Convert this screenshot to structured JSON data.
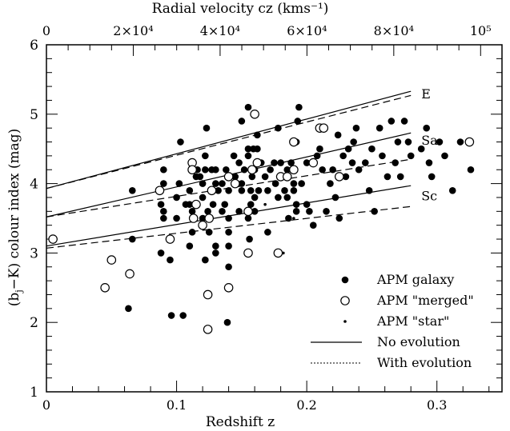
{
  "chart_data": {
    "type": "scatter",
    "title": "",
    "xlabel": "Redshift  z",
    "ylabel": "(b_j−K) colour index  (mag)",
    "top_xlabel": "Radial velocity   cz   (kms⁻¹)",
    "xlim": [
      0,
      0.35
    ],
    "ylim": [
      1,
      6
    ],
    "x_ticks": [
      {
        "value": 0,
        "label": "0"
      },
      {
        "value": 0.1,
        "label": "0.1"
      },
      {
        "value": 0.2,
        "label": "0.2"
      },
      {
        "value": 0.3,
        "label": "0.3"
      }
    ],
    "y_ticks": [
      {
        "value": 1,
        "label": "1"
      },
      {
        "value": 2,
        "label": "2"
      },
      {
        "value": 3,
        "label": "3"
      },
      {
        "value": 4,
        "label": "4"
      },
      {
        "value": 5,
        "label": "5"
      },
      {
        "value": 6,
        "label": "6"
      }
    ],
    "top_ticks": [
      {
        "value": 0,
        "label": "0"
      },
      {
        "value": 20000,
        "label": "2×10⁴"
      },
      {
        "value": 40000,
        "label": "4×10⁴"
      },
      {
        "value": 60000,
        "label": "6×10⁴"
      },
      {
        "value": 80000,
        "label": "8×10⁴"
      },
      {
        "value": 100000,
        "label": "10⁵"
      }
    ],
    "grid": false,
    "legend_position": "bottom-right",
    "legend": [
      {
        "marker": "filled-circle",
        "label": "APM galaxy"
      },
      {
        "marker": "open-circle",
        "label": "APM \"merged\""
      },
      {
        "marker": "small-dot",
        "label": "APM \"star\""
      },
      {
        "marker": "solid-line",
        "label": "No evolution"
      },
      {
        "marker": "dotted-line",
        "label": "With evolution"
      }
    ],
    "model_lines": [
      {
        "name": "E",
        "evolution": false,
        "x": [
          0,
          0.28
        ],
        "y": [
          3.93,
          5.33
        ]
      },
      {
        "name": "E",
        "evolution": true,
        "x": [
          0,
          0.28
        ],
        "y": [
          3.93,
          5.27
        ]
      },
      {
        "name": "Sa",
        "evolution": false,
        "x": [
          0,
          0.28
        ],
        "y": [
          3.52,
          4.73
        ]
      },
      {
        "name": "Sa",
        "evolution": true,
        "x": [
          0,
          0.28
        ],
        "y": [
          3.52,
          4.35
        ]
      },
      {
        "name": "Sc",
        "evolution": false,
        "x": [
          0,
          0.28
        ],
        "y": [
          3.1,
          3.97
        ]
      },
      {
        "name": "Sc",
        "evolution": true,
        "x": [
          0,
          0.28
        ],
        "y": [
          3.07,
          3.67
        ]
      }
    ],
    "line_labels": [
      "E",
      "Sa",
      "Sc"
    ],
    "series": [
      {
        "name": "APM galaxy",
        "points": [
          [
            0.066,
            3.9
          ],
          [
            0.066,
            3.2
          ],
          [
            0.088,
            3.7
          ],
          [
            0.09,
            3.6
          ],
          [
            0.09,
            4.0
          ],
          [
            0.09,
            4.2
          ],
          [
            0.09,
            3.5
          ],
          [
            0.088,
            3.0
          ],
          [
            0.095,
            2.9
          ],
          [
            0.1,
            3.8
          ],
          [
            0.1,
            3.5
          ],
          [
            0.102,
            4.0
          ],
          [
            0.103,
            4.6
          ],
          [
            0.107,
            3.7
          ],
          [
            0.11,
            3.7
          ],
          [
            0.11,
            3.9
          ],
          [
            0.11,
            3.1
          ],
          [
            0.112,
            3.6
          ],
          [
            0.115,
            4.1
          ],
          [
            0.116,
            4.2
          ],
          [
            0.118,
            4.1
          ],
          [
            0.12,
            3.5
          ],
          [
            0.12,
            3.8
          ],
          [
            0.12,
            4.0
          ],
          [
            0.122,
            4.2
          ],
          [
            0.122,
            4.4
          ],
          [
            0.123,
            4.8
          ],
          [
            0.124,
            3.6
          ],
          [
            0.125,
            3.3
          ],
          [
            0.127,
            4.2
          ],
          [
            0.128,
            3.7
          ],
          [
            0.128,
            3.9
          ],
          [
            0.13,
            4.0
          ],
          [
            0.13,
            4.2
          ],
          [
            0.132,
            3.9
          ],
          [
            0.135,
            4.0
          ],
          [
            0.135,
            3.6
          ],
          [
            0.137,
            3.7
          ],
          [
            0.138,
            4.2
          ],
          [
            0.14,
            3.9
          ],
          [
            0.14,
            3.5
          ],
          [
            0.14,
            3.3
          ],
          [
            0.14,
            3.1
          ],
          [
            0.14,
            2.8
          ],
          [
            0.144,
            4.4
          ],
          [
            0.145,
            4.1
          ],
          [
            0.148,
            4.3
          ],
          [
            0.148,
            3.6
          ],
          [
            0.15,
            3.9
          ],
          [
            0.15,
            4.0
          ],
          [
            0.152,
            4.2
          ],
          [
            0.155,
            4.5
          ],
          [
            0.155,
            4.4
          ],
          [
            0.155,
            3.5
          ],
          [
            0.156,
            3.2
          ],
          [
            0.157,
            3.7
          ],
          [
            0.157,
            3.9
          ],
          [
            0.158,
            4.1
          ],
          [
            0.159,
            4.5
          ],
          [
            0.16,
            3.6
          ],
          [
            0.16,
            3.8
          ],
          [
            0.16,
            4.2
          ],
          [
            0.16,
            5.0
          ],
          [
            0.162,
            4.7
          ],
          [
            0.162,
            4.5
          ],
          [
            0.163,
            3.9
          ],
          [
            0.165,
            4.3
          ],
          [
            0.168,
            4.1
          ],
          [
            0.17,
            3.3
          ],
          [
            0.172,
            4.2
          ],
          [
            0.175,
            4.3
          ],
          [
            0.176,
            4.0
          ],
          [
            0.178,
            3.8
          ],
          [
            0.18,
            4.3
          ],
          [
            0.182,
            4.1
          ],
          [
            0.183,
            3.9
          ],
          [
            0.185,
            4.2
          ],
          [
            0.186,
            3.5
          ],
          [
            0.188,
            4.3
          ],
          [
            0.19,
            4.0
          ],
          [
            0.19,
            3.9
          ],
          [
            0.192,
            4.6
          ],
          [
            0.192,
            3.7
          ],
          [
            0.193,
            4.9
          ],
          [
            0.194,
            5.1
          ],
          [
            0.196,
            4.0
          ],
          [
            0.2,
            4.3
          ],
          [
            0.2,
            3.7
          ],
          [
            0.202,
            3.6
          ],
          [
            0.205,
            3.4
          ],
          [
            0.208,
            4.4
          ],
          [
            0.21,
            4.5
          ],
          [
            0.212,
            4.2
          ],
          [
            0.215,
            3.6
          ],
          [
            0.218,
            4.0
          ],
          [
            0.22,
            4.2
          ],
          [
            0.222,
            3.8
          ],
          [
            0.224,
            4.7
          ],
          [
            0.225,
            3.5
          ],
          [
            0.228,
            4.4
          ],
          [
            0.23,
            4.1
          ],
          [
            0.232,
            4.5
          ],
          [
            0.235,
            4.3
          ],
          [
            0.236,
            4.6
          ],
          [
            0.238,
            4.8
          ],
          [
            0.24,
            4.2
          ],
          [
            0.245,
            4.3
          ],
          [
            0.248,
            3.9
          ],
          [
            0.25,
            4.5
          ],
          [
            0.252,
            3.6
          ],
          [
            0.256,
            4.8
          ],
          [
            0.258,
            4.4
          ],
          [
            0.262,
            4.1
          ],
          [
            0.265,
            4.9
          ],
          [
            0.268,
            4.3
          ],
          [
            0.27,
            4.6
          ],
          [
            0.272,
            4.1
          ],
          [
            0.275,
            4.9
          ],
          [
            0.278,
            4.6
          ],
          [
            0.28,
            4.4
          ],
          [
            0.288,
            4.5
          ],
          [
            0.292,
            4.8
          ],
          [
            0.294,
            4.3
          ],
          [
            0.296,
            4.1
          ],
          [
            0.302,
            4.6
          ],
          [
            0.306,
            4.4
          ],
          [
            0.312,
            3.9
          ],
          [
            0.318,
            4.6
          ],
          [
            0.326,
            4.2
          ],
          [
            0.063,
            2.2
          ],
          [
            0.096,
            2.1
          ],
          [
            0.105,
            2.1
          ],
          [
            0.139,
            2.0
          ],
          [
            0.155,
            5.1
          ],
          [
            0.15,
            4.9
          ],
          [
            0.178,
            4.8
          ],
          [
            0.192,
            3.6
          ],
          [
            0.17,
            3.9
          ],
          [
            0.185,
            3.8
          ],
          [
            0.13,
            3.1
          ],
          [
            0.13,
            3.0
          ],
          [
            0.122,
            2.9
          ],
          [
            0.112,
            3.3
          ]
        ]
      },
      {
        "name": "APM \"merged\"",
        "points": [
          [
            0.005,
            3.2
          ],
          [
            0.045,
            2.5
          ],
          [
            0.05,
            2.9
          ],
          [
            0.064,
            2.7
          ],
          [
            0.087,
            3.9
          ],
          [
            0.095,
            3.2
          ],
          [
            0.112,
            4.3
          ],
          [
            0.112,
            4.2
          ],
          [
            0.113,
            3.5
          ],
          [
            0.115,
            3.7
          ],
          [
            0.12,
            3.4
          ],
          [
            0.124,
            2.4
          ],
          [
            0.124,
            1.9
          ],
          [
            0.125,
            3.5
          ],
          [
            0.127,
            3.9
          ],
          [
            0.14,
            2.5
          ],
          [
            0.14,
            4.1
          ],
          [
            0.145,
            4.0
          ],
          [
            0.155,
            3.6
          ],
          [
            0.155,
            3.0
          ],
          [
            0.158,
            4.2
          ],
          [
            0.16,
            5.0
          ],
          [
            0.162,
            4.3
          ],
          [
            0.178,
            3.0
          ],
          [
            0.18,
            4.1
          ],
          [
            0.185,
            4.1
          ],
          [
            0.19,
            4.6
          ],
          [
            0.19,
            4.2
          ],
          [
            0.205,
            4.3
          ],
          [
            0.21,
            4.8
          ],
          [
            0.213,
            4.8
          ],
          [
            0.225,
            4.1
          ],
          [
            0.325,
            4.6
          ]
        ]
      },
      {
        "name": "APM \"star\"",
        "points": [
          [
            0.182,
            3.0
          ],
          [
            0.168,
            3.7
          ],
          [
            0.19,
            3.5
          ]
        ]
      }
    ]
  }
}
